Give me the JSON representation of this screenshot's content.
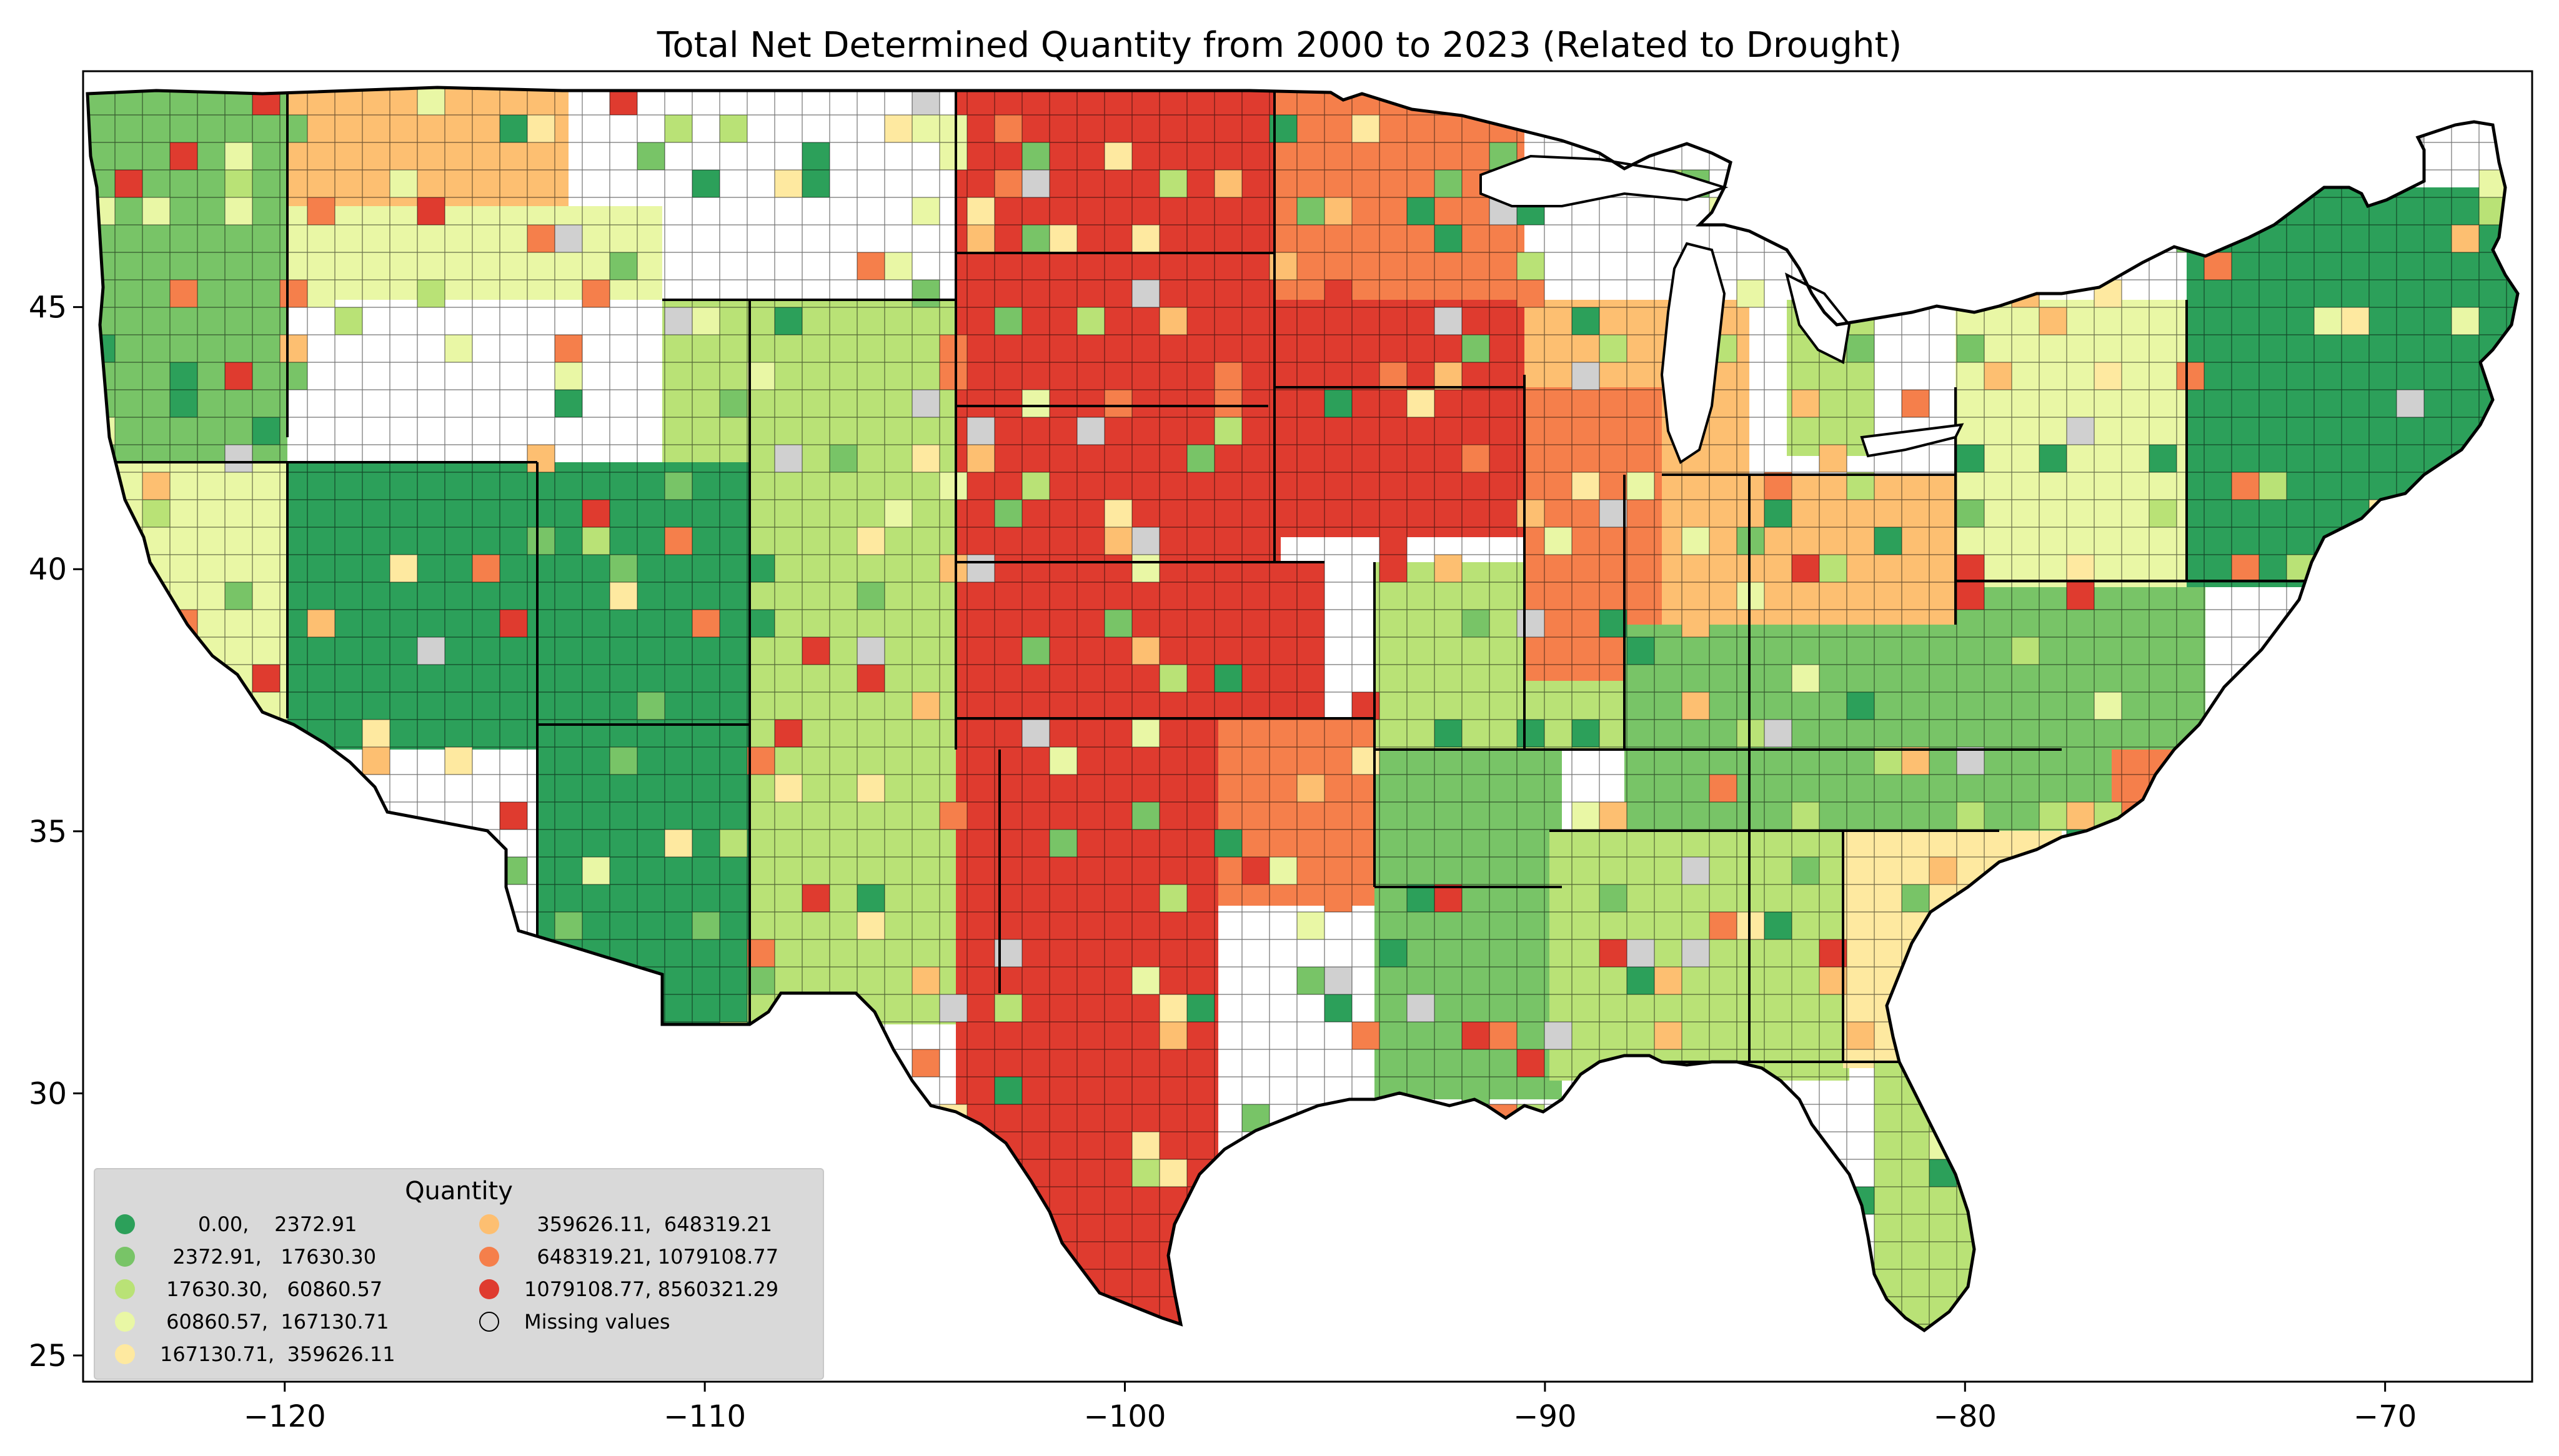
{
  "title": "Total Net Determined Quantity from 2000 to 2023 (Related to Drought)",
  "map_data": {
    "type": "choropleth",
    "region": "contiguous United States, county level",
    "x_axis": {
      "ticks": [
        -120,
        -110,
        -100,
        -90,
        -80,
        -70
      ],
      "labels": [
        "−120",
        "−110",
        "−100",
        "−90",
        "−80",
        "−70"
      ],
      "range": [
        -124.8,
        -66.5
      ]
    },
    "y_axis": {
      "ticks": [
        25,
        30,
        35,
        40,
        45
      ],
      "labels": [
        "25",
        "30",
        "35",
        "40",
        "45"
      ],
      "range": [
        24.5,
        49.5
      ]
    },
    "grid": false
  },
  "legend": {
    "title": "Quantity",
    "placement": "lower-left",
    "items": [
      {
        "label": "      0.00,    2372.91",
        "color": "#2ca05a",
        "range": [
          0.0,
          2372.91
        ]
      },
      {
        "label": "  2372.91,   17630.30",
        "color": "#78c467",
        "range": [
          2372.91,
          17630.3
        ]
      },
      {
        "label": " 17630.30,   60860.57",
        "color": "#b9e276",
        "range": [
          17630.3,
          60860.57
        ]
      },
      {
        "label": " 60860.57,  167130.71",
        "color": "#e9f7a5",
        "range": [
          60860.57,
          167130.71
        ]
      },
      {
        "label": "167130.71,  359626.11",
        "color": "#fee9a0",
        "range": [
          167130.71,
          359626.11
        ]
      },
      {
        "label": "  359626.11,  648319.21",
        "color": "#fdbf71",
        "range": [
          359626.11,
          648319.21
        ]
      },
      {
        "label": "  648319.21, 1079108.77",
        "color": "#f57f4b",
        "range": [
          648319.21,
          1079108.77
        ]
      },
      {
        "label": "1079108.77, 8560321.29",
        "color": "#df3b2f",
        "range": [
          1079108.77,
          8560321.29
        ]
      },
      {
        "label": "Missing values",
        "color": "#d0d0d0",
        "missing": true
      }
    ]
  }
}
